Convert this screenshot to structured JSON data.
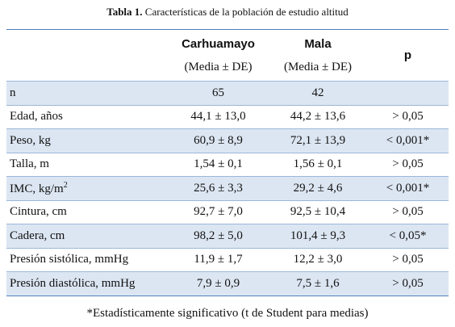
{
  "title": {
    "label": "Tabla 1.",
    "text": "Características de la población de estudio altitud"
  },
  "header": {
    "columns": [
      "Carhuamayo",
      "Mala",
      "p"
    ],
    "subtitles": [
      "(Media ± DE)",
      "(Media ± DE)"
    ]
  },
  "rows": [
    {
      "label": "n",
      "values": [
        "65",
        "42",
        ""
      ]
    },
    {
      "label": "Edad,  años",
      "values": [
        "44,1 ± 13,0",
        "44,2 ± 13,6",
        "> 0,05"
      ]
    },
    {
      "label": "Peso, kg",
      "values": [
        "60,9 ± 8,9",
        "72,1 ± 13,9",
        "< 0,001*"
      ]
    },
    {
      "label": "Talla, m",
      "values": [
        "1,54 ± 0,1",
        "1,56 ± 0,1",
        "> 0,05"
      ]
    },
    {
      "label": "IMC, kg/m",
      "sup": "2",
      "values": [
        "25,6 ± 3,3",
        "29,2 ± 4,6",
        "< 0,001*"
      ]
    },
    {
      "label": "Cintura, cm",
      "values": [
        "92,7 ± 7,0",
        "92,5 ± 10,4",
        "> 0,05"
      ]
    },
    {
      "label": "Cadera, cm",
      "values": [
        "98,2 ± 5,0",
        "101,4 ± 9,3",
        "< 0,05*"
      ]
    },
    {
      "label": "Presión sistólica, mmHg",
      "values": [
        "11,9 ± 1,7",
        "12,2 ± 3,0",
        "> 0,05"
      ]
    },
    {
      "label": "Presión diastólica, mmHg",
      "values": [
        "7,9 ± 0,9",
        "7,5 ± 1,6",
        "> 0,05"
      ]
    }
  ],
  "footnote": "*Estadísticamente significativo (t de Student para medias)"
}
